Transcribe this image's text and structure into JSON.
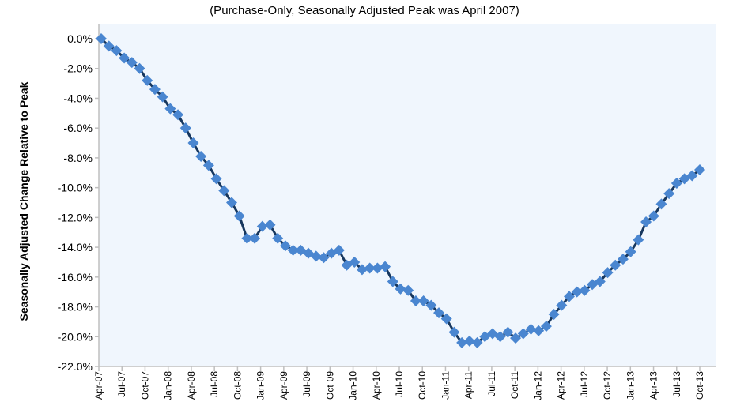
{
  "chart_data": {
    "type": "line",
    "title": "(Purchase-Only, Seasonally Adjusted Peak was April 2007)",
    "xlabel": "",
    "ylabel": "Seasonally Adjusted Change Relative to Peak",
    "ylim": [
      -22.0,
      0.0
    ],
    "ytick_step": 2.0,
    "yticks": [
      "0.0%",
      "-2.0%",
      "-4.0%",
      "-6.0%",
      "-8.0%",
      "-10.0%",
      "-12.0%",
      "-14.0%",
      "-16.0%",
      "-18.0%",
      "-20.0%",
      "-22.0%"
    ],
    "xtick_labels": [
      "Apr-07",
      "Jul-07",
      "Oct-07",
      "Jan-08",
      "Apr-08",
      "Jul-08",
      "Oct-08",
      "Jan-09",
      "Apr-09",
      "Jul-09",
      "Oct-09",
      "Jan-10",
      "Apr-10",
      "Jul-10",
      "Oct-10",
      "Jan-11",
      "Apr-11",
      "Jul-11",
      "Oct-11",
      "Jan-12",
      "Apr-12",
      "Jul-12",
      "Oct-12",
      "Jan-13",
      "Apr-13",
      "Jul-13",
      "Oct-13"
    ],
    "x_start": "Apr-07",
    "x_end": "Oct-13",
    "x_frequency": "monthly",
    "grid": false,
    "colors": {
      "line": "#17375E",
      "marker": "#4A86D0",
      "plot_bg": "#F0F6FD"
    },
    "marker": "diamond",
    "series": [
      {
        "values": [
          0.0,
          -0.5,
          -0.8,
          -1.3,
          -1.6,
          -2.0,
          -2.8,
          -3.4,
          -3.9,
          -4.7,
          -5.1,
          -6.0,
          -7.0,
          -7.9,
          -8.5,
          -9.4,
          -10.2,
          -11.0,
          -11.9,
          -13.4,
          -13.4,
          -12.6,
          -12.5,
          -13.4,
          -13.9,
          -14.2,
          -14.2,
          -14.4,
          -14.6,
          -14.7,
          -14.4,
          -14.2,
          -15.2,
          -15.0,
          -15.5,
          -15.4,
          -15.4,
          -15.3,
          -16.3,
          -16.8,
          -16.9,
          -17.6,
          -17.6,
          -17.9,
          -18.4,
          -18.8,
          -19.7,
          -20.4,
          -20.3,
          -20.4,
          -20.0,
          -19.8,
          -20.0,
          -19.7,
          -20.1,
          -19.8,
          -19.5,
          -19.6,
          -19.3,
          -18.5,
          -17.9,
          -17.3,
          -17.0,
          -16.9,
          -16.5,
          -16.3,
          -15.7,
          -15.2,
          -14.8,
          -14.3,
          -13.5,
          -12.3,
          -11.9,
          -11.1,
          -10.4,
          -9.7,
          -9.4,
          -9.2,
          -8.8
        ]
      }
    ]
  }
}
